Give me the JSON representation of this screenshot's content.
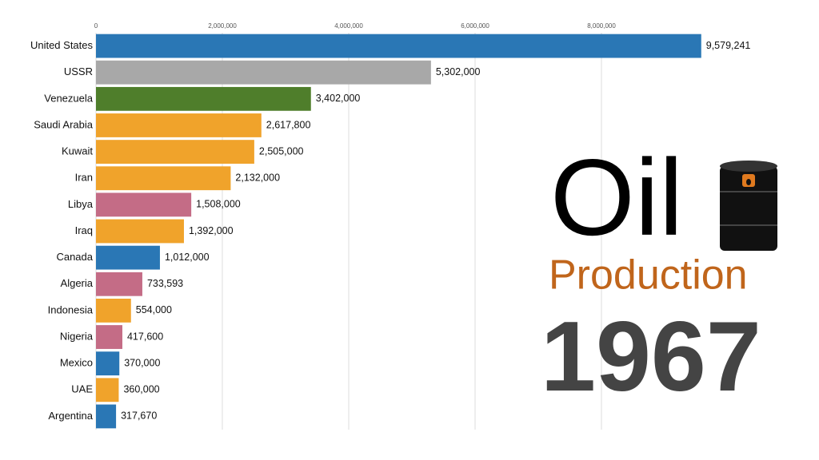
{
  "chart_data": {
    "type": "barh",
    "title": "Oil",
    "subtitle": "Production",
    "annotation": "1967",
    "categories": [
      "United States",
      "USSR",
      "Venezuela",
      "Saudi Arabia",
      "Kuwait",
      "Iran",
      "Libya",
      "Iraq",
      "Canada",
      "Algeria",
      "Indonesia",
      "Nigeria",
      "Mexico",
      "UAE",
      "Argentina"
    ],
    "values": [
      9579241,
      5302000,
      3402000,
      2617800,
      2505000,
      2132000,
      1508000,
      1392000,
      1012000,
      733593,
      554000,
      417600,
      370000,
      360000,
      317670
    ],
    "value_labels": [
      "9,579,241",
      "5,302,000",
      "3,402,000",
      "2,617,800",
      "2,505,000",
      "2,132,000",
      "1,508,000",
      "1,392,000",
      "1,012,000",
      "733,593",
      "554,000",
      "417,600",
      "370,000",
      "360,000",
      "317,670"
    ],
    "colors": [
      "#2a77b5",
      "#a8a8a8",
      "#4f7e2b",
      "#f0a32b",
      "#f0a32b",
      "#f0a32b",
      "#c46c86",
      "#f0a32b",
      "#2a77b5",
      "#c46c86",
      "#f0a32b",
      "#c46c86",
      "#2a77b5",
      "#f0a32b",
      "#2a77b5"
    ],
    "xlim": [
      0,
      10000000
    ],
    "xticks": [
      0,
      {
        "value": 2000000,
        "label": "2,000,000"
      },
      {
        "value": 4000000,
        "label": "4,000,000"
      },
      {
        "value": 6000000,
        "label": "6,000,000"
      },
      {
        "value": 8000000,
        "label": "8,000,000"
      }
    ],
    "grid": true
  }
}
